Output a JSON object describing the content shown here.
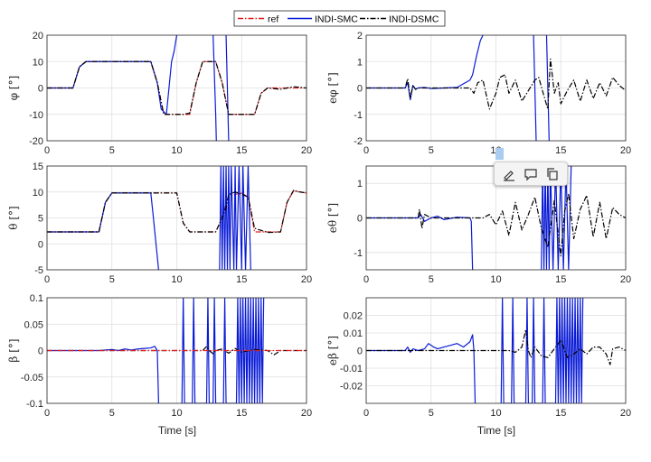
{
  "colors": {
    "ref": "#e31a1c",
    "smc": "#0a1bd6",
    "dsmc": "#000000",
    "grid": "#dfdfdf",
    "axis": "#262626"
  },
  "legend": [
    {
      "label": "ref",
      "style": "dashdot",
      "color": "#e31a1c"
    },
    {
      "label": "INDI-SMC",
      "style": "solid",
      "color": "#0a1bd6"
    },
    {
      "label": "INDI-DSMC",
      "style": "dashdot",
      "color": "#000000"
    }
  ],
  "xlabel": "Time [s]",
  "toolbar": {
    "icons": [
      "highlight-icon",
      "comment-icon",
      "copy-icon"
    ]
  },
  "chart_data": [
    {
      "type": "line",
      "id": "phi",
      "ylabel": "φ [°]",
      "xlim": [
        0,
        20
      ],
      "ylim": [
        -20,
        20
      ],
      "xticks": [
        "0",
        "5",
        "10",
        "15",
        "20"
      ],
      "yticks": [
        "-20",
        "-10",
        "0",
        "10",
        "20"
      ],
      "grid": true,
      "series": [
        {
          "name": "ref",
          "x": [
            0,
            2,
            2.5,
            3,
            8,
            8.5,
            9,
            11,
            11.5,
            12,
            13,
            13.5,
            14,
            16,
            16.5,
            17,
            20
          ],
          "y": [
            0,
            0,
            8,
            10,
            10,
            2,
            -10,
            -10,
            2,
            10,
            10,
            2,
            -10,
            -10,
            -2,
            0,
            0
          ]
        },
        {
          "name": "INDI-SMC",
          "x": [
            0,
            2,
            2.5,
            3,
            8,
            8.5,
            8.8,
            9.2,
            9.6,
            9.8,
            9.9,
            10.0
          ],
          "y": [
            0,
            0,
            8,
            10,
            10,
            2,
            -8,
            -10,
            10,
            14,
            17,
            20
          ]
        },
        {
          "name": "INDI-SMC",
          "x": [
            12.8,
            12.9,
            13.0,
            13.05,
            13.1
          ],
          "y": [
            20,
            5,
            -10,
            -20,
            -20
          ]
        },
        {
          "name": "INDI-SMC",
          "x": [
            13.8,
            13.9,
            14.0
          ],
          "y": [
            20,
            0,
            -20
          ]
        },
        {
          "name": "INDI-DSMC",
          "x": [
            0,
            2,
            2.5,
            3,
            8,
            8.5,
            9,
            10.5,
            11,
            11.5,
            12,
            13,
            13.5,
            14,
            16,
            16.5,
            17,
            18,
            19,
            20
          ],
          "y": [
            0,
            0,
            8,
            10,
            10,
            2,
            -10,
            -10,
            -9.5,
            2,
            10,
            10,
            2,
            -10,
            -10,
            -2,
            0,
            -0.5,
            0.5,
            0
          ]
        }
      ]
    },
    {
      "type": "line",
      "id": "ephi",
      "ylabel": "eφ [°]",
      "xlim": [
        0,
        20
      ],
      "ylim": [
        -2,
        2
      ],
      "xticks": [
        "0",
        "5",
        "10",
        "15",
        "20"
      ],
      "yticks": [
        "-2",
        "-1",
        "0",
        "1",
        "2"
      ],
      "grid": true,
      "series": [
        {
          "name": "INDI-SMC",
          "x": [
            0,
            3,
            3.2,
            3.4,
            3.6,
            3.8,
            4.0,
            4.5,
            5,
            6,
            7,
            8,
            8.2,
            8.5,
            8.8,
            9.0
          ],
          "y": [
            0,
            0,
            0.2,
            -0.45,
            0.1,
            -0.05,
            0,
            0.02,
            -0.02,
            0,
            0.02,
            0.3,
            0.5,
            1.2,
            1.8,
            2
          ]
        },
        {
          "name": "INDI-SMC",
          "x": [
            12.9,
            13.0,
            13.1
          ],
          "y": [
            2,
            0,
            -2
          ]
        },
        {
          "name": "INDI-SMC",
          "x": [
            13.9,
            14.0,
            14.1
          ],
          "y": [
            2,
            0,
            -2
          ]
        },
        {
          "name": "INDI-DSMC",
          "x": [
            0,
            3,
            3.2,
            3.4,
            3.6,
            3.8,
            4.0,
            5,
            6,
            7,
            8,
            8.3,
            8.6,
            9,
            9.5,
            10,
            10.3,
            10.7,
            11,
            11.5,
            12,
            12.5,
            13,
            13.3,
            13.7,
            14,
            14.2,
            14.5,
            14.8,
            15,
            15.5,
            16,
            16.5,
            17,
            17.5,
            18,
            18.5,
            19,
            19.5,
            20
          ],
          "y": [
            0,
            0,
            0.35,
            -0.4,
            0.1,
            -0.05,
            0,
            0,
            0,
            0,
            0,
            -0.2,
            0.2,
            0.3,
            -0.8,
            -0.2,
            0.4,
            0.5,
            -0.2,
            0.3,
            -0.5,
            -0.1,
            0.3,
            0.4,
            -0.3,
            -0.8,
            1.1,
            -0.2,
            0.2,
            -0.6,
            -0.1,
            0.3,
            -0.5,
            0.3,
            -0.4,
            0.2,
            -0.3,
            0.4,
            0.1,
            -0.1
          ]
        }
      ]
    },
    {
      "type": "line",
      "id": "theta",
      "ylabel": "θ [°]",
      "xlim": [
        0,
        20
      ],
      "ylim": [
        -5,
        15
      ],
      "xticks": [
        "0",
        "5",
        "10",
        "15",
        "20"
      ],
      "yticks": [
        "-5",
        "0",
        "5",
        "10",
        "15"
      ],
      "grid": true,
      "series": [
        {
          "name": "ref",
          "x": [
            0,
            4,
            4.5,
            5,
            10,
            10.5,
            11,
            13,
            13.5,
            14,
            15,
            15.5,
            16,
            18,
            18.5,
            19,
            20
          ],
          "y": [
            2.3,
            2.3,
            8,
            9.8,
            9.8,
            4,
            2.3,
            2.3,
            5,
            9.3,
            9.8,
            9,
            2.3,
            2.3,
            8,
            10.2,
            9.8
          ]
        },
        {
          "name": "INDI-SMC",
          "x": [
            0,
            4,
            4.5,
            5,
            8,
            8.2,
            8.4,
            8.6
          ],
          "y": [
            2.3,
            2.3,
            8,
            9.8,
            9.8,
            5,
            0,
            -5
          ]
        },
        {
          "name": "INDI-SMC",
          "x": [
            13.3,
            13.4,
            13.5,
            13.6,
            13.7,
            13.8,
            13.9,
            14.0,
            14.1,
            14.2,
            14.4,
            14.5,
            14.6,
            14.8,
            15.0,
            15.1,
            15.3,
            15.5,
            15.7
          ],
          "y": [
            -5,
            15,
            -5,
            15,
            -5,
            15,
            -5,
            15,
            -5,
            15,
            -5,
            15,
            -5,
            15,
            -5,
            15,
            -5,
            15,
            -5
          ]
        },
        {
          "name": "INDI-DSMC",
          "x": [
            0,
            4,
            4.5,
            5,
            10,
            10.5,
            11,
            13,
            13.5,
            13.8,
            14,
            14.5,
            15,
            15.5,
            16,
            17,
            18,
            18.5,
            19,
            19.5,
            20
          ],
          "y": [
            2.3,
            2.3,
            8,
            9.8,
            9.8,
            4,
            2.3,
            2.3,
            5,
            7,
            9.5,
            10,
            9.6,
            9,
            3,
            2.2,
            2.3,
            8,
            10.3,
            10,
            9.8
          ]
        }
      ]
    },
    {
      "type": "line",
      "id": "etheta",
      "ylabel": "eθ [°]",
      "xlim": [
        0,
        20
      ],
      "ylim": [
        -1.5,
        1.5
      ],
      "xticks": [
        "0",
        "5",
        "10",
        "15",
        "20"
      ],
      "yticks": [
        "-1",
        "0",
        "1"
      ],
      "grid": true,
      "series": [
        {
          "name": "INDI-SMC",
          "x": [
            0,
            4,
            4.2,
            4.5,
            5,
            5.5,
            6,
            7,
            8,
            8.1,
            8.2
          ],
          "y": [
            0,
            0,
            0.1,
            -0.1,
            0,
            0.05,
            -0.05,
            0.02,
            0,
            -0.1,
            -1.5
          ]
        },
        {
          "name": "INDI-SMC",
          "x": [
            13.5,
            13.6,
            13.7,
            13.8,
            13.9,
            14.0,
            14.1,
            14.2,
            14.4,
            14.6,
            14.8,
            15.0,
            15.2,
            15.4,
            15.6,
            15.8
          ],
          "y": [
            -1.5,
            1.5,
            -1.5,
            1.5,
            -1.5,
            1.5,
            -1.5,
            1.5,
            -1.5,
            1.5,
            -1.5,
            1.5,
            -1.5,
            1.5,
            -1.5,
            1.5
          ]
        },
        {
          "name": "INDI-DSMC",
          "x": [
            0,
            4,
            4.1,
            4.3,
            4.5,
            5,
            6,
            7,
            8,
            9,
            9.5,
            10,
            10.5,
            11,
            11.5,
            12,
            12.5,
            13,
            13.5,
            14,
            14.5,
            15,
            15.3,
            15.6,
            16,
            16.5,
            17,
            17.5,
            18,
            18.5,
            19,
            19.5,
            20
          ],
          "y": [
            0,
            0,
            0.25,
            -0.3,
            0.1,
            0,
            0,
            0,
            0,
            0,
            0.1,
            -0.2,
            0.2,
            -0.5,
            0.45,
            -0.35,
            0.1,
            0.6,
            -0.3,
            -0.85,
            0.5,
            -1.1,
            0.2,
            0.7,
            -0.6,
            0.25,
            0.65,
            -0.55,
            0.45,
            -0.6,
            0.3,
            0.1,
            0
          ]
        }
      ]
    },
    {
      "type": "line",
      "id": "beta",
      "ylabel": "β [°]",
      "xlim": [
        0,
        20
      ],
      "ylim": [
        -0.1,
        0.1
      ],
      "xticks": [
        "0",
        "5",
        "10",
        "15",
        "20"
      ],
      "yticks": [
        "-0.1",
        "-0.05",
        "0",
        "0.05",
        "0.1"
      ],
      "grid": true,
      "series": [
        {
          "name": "INDI-SMC",
          "x": [
            0,
            1,
            2,
            3,
            4,
            5,
            5.5,
            6,
            6.5,
            7,
            7.5,
            8,
            8.3,
            8.5,
            8.6
          ],
          "y": [
            0,
            0,
            0,
            0,
            0,
            0.002,
            0,
            0.003,
            0.001,
            0.003,
            0.004,
            0.005,
            0.008,
            0,
            -0.1
          ]
        },
        {
          "name": "INDI-SMC",
          "x": [
            10.4,
            10.5,
            10.6,
            11.2,
            11.3,
            11.4,
            12.3,
            12.4,
            12.5,
            12.8,
            12.9,
            13.0,
            13.6,
            13.7,
            13.8,
            14.6,
            14.7,
            14.8,
            14.9,
            15.0,
            15.1,
            15.2,
            15.3,
            15.4,
            15.5,
            15.6,
            15.7,
            15.8,
            15.9,
            16.0,
            16.1,
            16.2,
            16.3,
            16.4,
            16.5,
            16.6,
            16.7
          ],
          "y": [
            -0.1,
            0.1,
            -0.1,
            -0.1,
            0.1,
            -0.1,
            -0.1,
            0.1,
            -0.1,
            -0.1,
            0.1,
            -0.1,
            -0.1,
            0.1,
            -0.1,
            -0.1,
            0.1,
            -0.1,
            0.1,
            -0.1,
            0.1,
            -0.1,
            0.1,
            -0.1,
            0.1,
            -0.1,
            0.1,
            -0.1,
            0.1,
            -0.1,
            0.1,
            -0.1,
            0.1,
            -0.1,
            0.1,
            -0.1,
            0.1
          ]
        },
        {
          "name": "INDI-DSMC",
          "x": [
            0,
            8,
            9,
            10,
            11,
            12,
            12.3,
            12.5,
            12.8,
            13,
            13.5,
            14,
            14.5,
            15,
            16,
            17,
            17.5,
            18,
            19,
            20
          ],
          "y": [
            0,
            0,
            0,
            0,
            0,
            0,
            0.008,
            0,
            -0.006,
            0,
            0.003,
            -0.005,
            0.004,
            -0.003,
            0.002,
            0,
            -0.008,
            0,
            0,
            0
          ]
        },
        {
          "name": "ref",
          "x": [
            0,
            20
          ],
          "y": [
            0,
            0
          ]
        }
      ]
    },
    {
      "type": "line",
      "id": "ebeta",
      "ylabel": "eβ [°]",
      "xlim": [
        0,
        20
      ],
      "ylim": [
        -0.03,
        0.03
      ],
      "xticks": [
        "0",
        "5",
        "10",
        "15",
        "20"
      ],
      "yticks": [
        "-0.02",
        "-0.01",
        "0",
        "0.01",
        "0.02"
      ],
      "grid": true,
      "series": [
        {
          "name": "INDI-SMC",
          "x": [
            0,
            1,
            2,
            3,
            3.2,
            3.4,
            3.6,
            4,
            4.5,
            4.8,
            5,
            5.2,
            5.5,
            6,
            6.5,
            7,
            7.5,
            8,
            8.2,
            8.3,
            8.4
          ],
          "y": [
            0,
            0,
            0,
            0,
            0.002,
            -0.001,
            0.001,
            0,
            0.001,
            0.004,
            0.003,
            0.002,
            0.001,
            0.002,
            0.003,
            0.004,
            0.002,
            0.005,
            0.009,
            0,
            -0.03
          ]
        },
        {
          "name": "INDI-SMC",
          "x": [
            10.4,
            10.5,
            10.6,
            11.2,
            11.3,
            11.4,
            12.3,
            12.4,
            12.5,
            12.8,
            12.9,
            13.0,
            13.6,
            13.7,
            13.8,
            14.6,
            14.7,
            14.8,
            14.9,
            15.0,
            15.1,
            15.2,
            15.3,
            15.4,
            15.5,
            15.6,
            15.7,
            15.8,
            15.9,
            16.0,
            16.1,
            16.2,
            16.3,
            16.4,
            16.5,
            16.6,
            16.7
          ],
          "y": [
            -0.03,
            0.03,
            -0.03,
            -0.03,
            0.03,
            -0.03,
            -0.03,
            0.03,
            -0.03,
            -0.03,
            0.03,
            -0.03,
            -0.03,
            0.03,
            -0.03,
            -0.03,
            0.03,
            -0.03,
            0.03,
            -0.03,
            0.03,
            -0.03,
            0.03,
            -0.03,
            0.03,
            -0.03,
            0.03,
            -0.03,
            0.03,
            -0.03,
            0.03,
            -0.03,
            0.03,
            -0.03,
            0.03,
            -0.03,
            0.03
          ]
        },
        {
          "name": "INDI-DSMC",
          "x": [
            0,
            8,
            9,
            10,
            11,
            11.5,
            12,
            12.3,
            12.5,
            12.7,
            13,
            13.5,
            14,
            14.5,
            15,
            15.5,
            16,
            16.5,
            17,
            17.5,
            18,
            18.5,
            18.8,
            19,
            19.5,
            20
          ],
          "y": [
            0,
            0,
            0,
            0,
            0,
            -0.001,
            0.002,
            0.012,
            0,
            -0.004,
            0.002,
            -0.003,
            -0.004,
            0.001,
            0.006,
            -0.004,
            -0.002,
            0.001,
            -0.002,
            0.002,
            0.002,
            -0.002,
            -0.008,
            0.001,
            0.002,
            0
          ]
        }
      ]
    }
  ]
}
